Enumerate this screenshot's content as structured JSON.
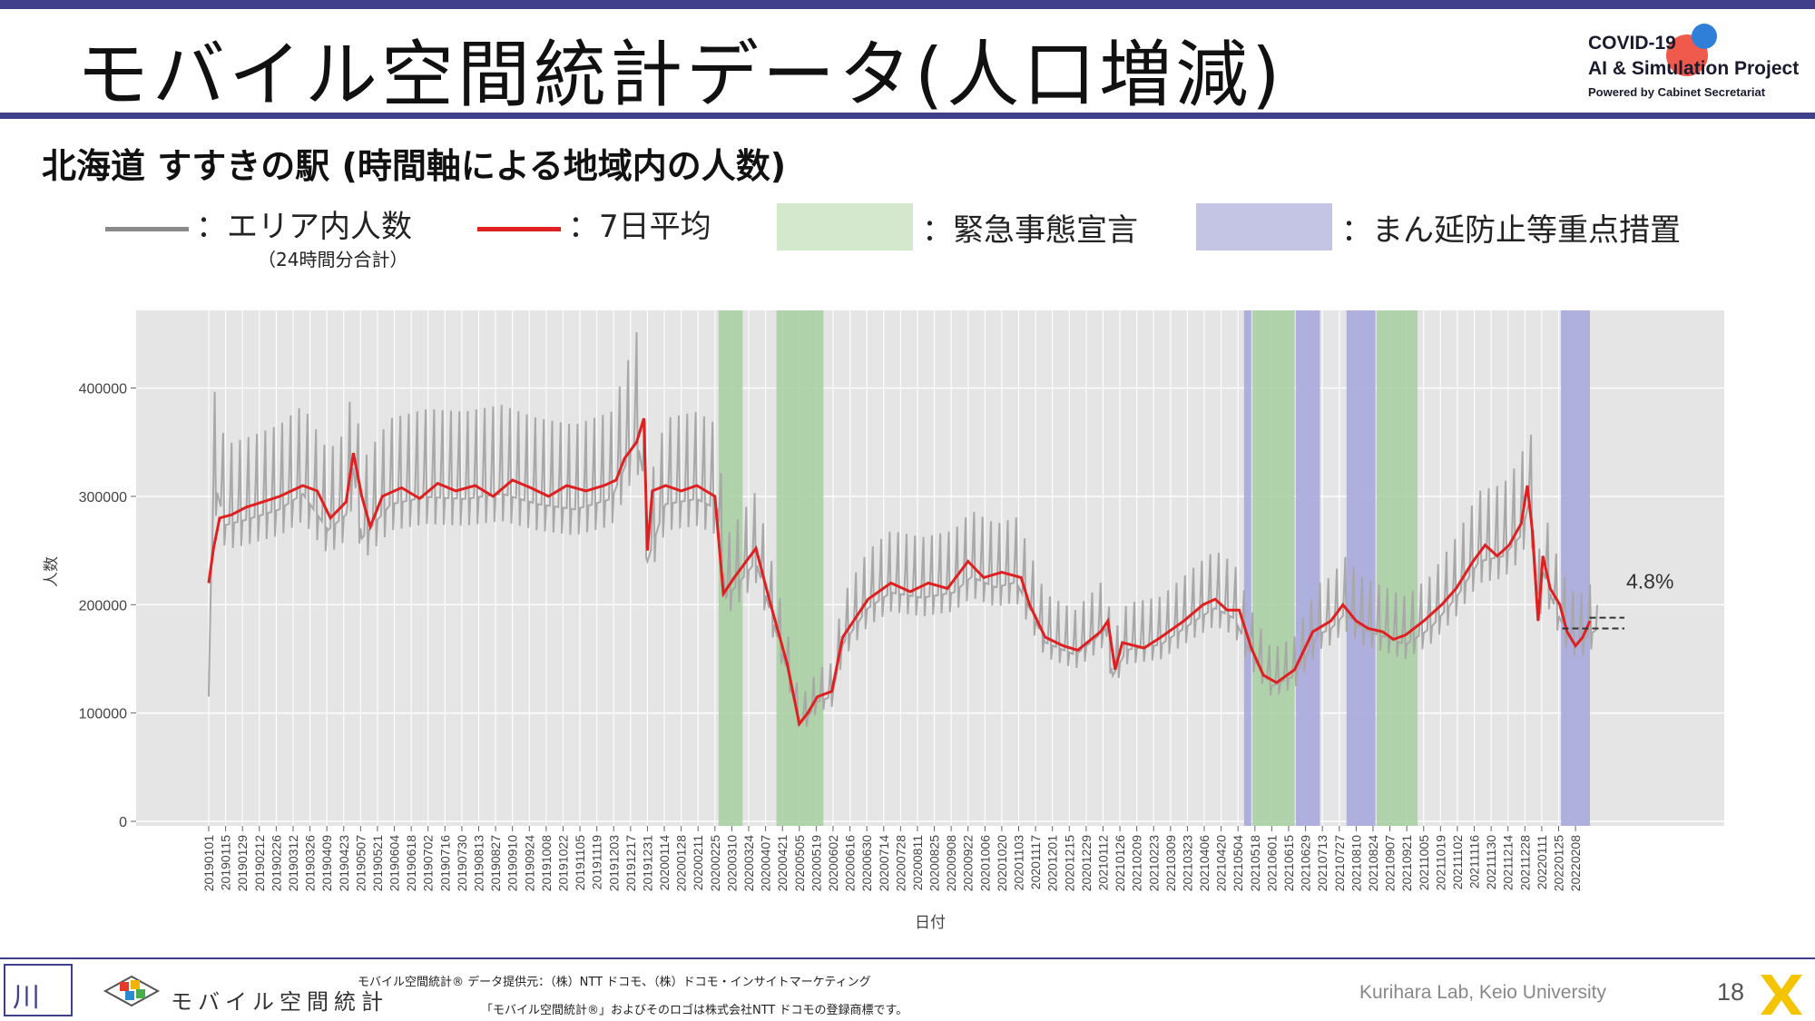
{
  "header": {
    "title": "モバイル空間統計データ(人口増減)",
    "logo": {
      "line1": "COVID-19",
      "line2": "AI & Simulation Project",
      "line3": "Powered by Cabinet Secretariat"
    }
  },
  "subtitle": "北海道 すすきの駅 (時間軸による地域内の人数)",
  "legend": {
    "area_count": "：エリア内人数",
    "area_count_note": "（24時間分合計）",
    "avg7": "：7日平均",
    "emergency": "：緊急事態宣言",
    "priority": "：まん延防止等重点措置"
  },
  "colors": {
    "raw_line": "#a8a8a8",
    "avg_line": "#e02020",
    "emergency_band": "#a6cfa0",
    "priority_band": "#a7a8dc",
    "panel": "#e5e5e5",
    "header_rule": "#3f3f8c"
  },
  "chart_data": {
    "type": "line",
    "xlabel": "日付",
    "ylabel": "人数",
    "ylim": [
      0,
      470000
    ],
    "y_ticks": [
      "0",
      "100000",
      "200000",
      "300000",
      "400000"
    ],
    "y_tick_values": [
      0,
      100000,
      200000,
      300000,
      400000
    ],
    "x_start": "2019-01-01",
    "x_end": "2022-02-26",
    "x_tick_labels": [
      "20190101",
      "20190115",
      "20190129",
      "20190212",
      "20190226",
      "20190312",
      "20190326",
      "20190409",
      "20190423",
      "20190507",
      "20190521",
      "20190604",
      "20190618",
      "20190702",
      "20190716",
      "20190730",
      "20190813",
      "20190827",
      "20190910",
      "20190924",
      "20191008",
      "20191022",
      "20191105",
      "20191119",
      "20191203",
      "20191217",
      "20191231",
      "20200114",
      "20200128",
      "20200211",
      "20200225",
      "20200310",
      "20200324",
      "20200407",
      "20200421",
      "20200505",
      "20200519",
      "20200602",
      "20200616",
      "20200630",
      "20200714",
      "20200728",
      "20200811",
      "20200825",
      "20200908",
      "20200922",
      "20201006",
      "20201020",
      "20201103",
      "20201117",
      "20201201",
      "20201215",
      "20201229",
      "20210112",
      "20210126",
      "20210209",
      "20210223",
      "20210309",
      "20210323",
      "20210406",
      "20210420",
      "20210504",
      "20210518",
      "20210601",
      "20210615",
      "20210629",
      "20210713",
      "20210727",
      "20210810",
      "20210824",
      "20210907",
      "20210921",
      "20211005",
      "20211019",
      "20211102",
      "20211116",
      "20211130",
      "20211214",
      "20211228",
      "20220111",
      "20220125",
      "20220208"
    ],
    "annotation": "4.8%",
    "emergency_periods": [
      [
        "2020-02-28",
        "2020-03-19"
      ],
      [
        "2020-04-16",
        "2020-05-25"
      ],
      [
        "2021-05-16",
        "2021-06-20"
      ],
      [
        "2021-08-27",
        "2021-09-30"
      ]
    ],
    "priority_periods": [
      [
        "2021-05-09",
        "2021-05-15"
      ],
      [
        "2021-06-21",
        "2021-07-11"
      ],
      [
        "2021-08-02",
        "2021-08-26"
      ],
      [
        "2022-01-27",
        "2022-02-20"
      ]
    ],
    "series": [
      {
        "name": "エリア内人数",
        "style": "raw",
        "points": [
          [
            "2019-01-01",
            120000
          ],
          [
            "2019-01-03",
            240000
          ],
          [
            "2019-01-06",
            325000
          ],
          [
            "2019-01-15",
            285000
          ],
          [
            "2019-02-01",
            290000
          ],
          [
            "2019-03-01",
            300000
          ],
          [
            "2019-03-20",
            315000
          ],
          [
            "2019-04-10",
            280000
          ],
          [
            "2019-04-25",
            295000
          ],
          [
            "2019-05-01",
            340000
          ],
          [
            "2019-05-08",
            272000
          ],
          [
            "2019-06-01",
            305000
          ],
          [
            "2019-07-01",
            312000
          ],
          [
            "2019-08-01",
            310000
          ],
          [
            "2019-09-01",
            315000
          ],
          [
            "2019-10-01",
            305000
          ],
          [
            "2019-11-01",
            300000
          ],
          [
            "2019-12-01",
            310000
          ],
          [
            "2019-12-12",
            340000
          ],
          [
            "2019-12-22",
            370000
          ],
          [
            "2019-12-28",
            330000
          ],
          [
            "2019-12-31",
            250000
          ],
          [
            "2020-01-15",
            305000
          ],
          [
            "2020-02-10",
            310000
          ],
          [
            "2020-02-27",
            300000
          ],
          [
            "2020-03-05",
            215000
          ],
          [
            "2020-03-20",
            235000
          ],
          [
            "2020-03-30",
            250000
          ],
          [
            "2020-04-10",
            205000
          ],
          [
            "2020-04-25",
            145000
          ],
          [
            "2020-05-05",
            95000
          ],
          [
            "2020-05-12",
            100000
          ],
          [
            "2020-05-20",
            115000
          ],
          [
            "2020-06-01",
            120000
          ],
          [
            "2020-06-10",
            170000
          ],
          [
            "2020-07-01",
            205000
          ],
          [
            "2020-07-20",
            220000
          ],
          [
            "2020-08-15",
            215000
          ],
          [
            "2020-09-10",
            220000
          ],
          [
            "2020-09-25",
            235000
          ],
          [
            "2020-10-15",
            225000
          ],
          [
            "2020-11-01",
            230000
          ],
          [
            "2020-11-12",
            205000
          ],
          [
            "2020-11-25",
            172000
          ],
          [
            "2020-12-20",
            160000
          ],
          [
            "2021-01-05",
            175000
          ],
          [
            "2021-01-14",
            185000
          ],
          [
            "2021-01-20",
            140000
          ],
          [
            "2021-02-01",
            165000
          ],
          [
            "2021-03-01",
            170000
          ],
          [
            "2021-04-01",
            195000
          ],
          [
            "2021-04-15",
            205000
          ],
          [
            "2021-05-01",
            195000
          ],
          [
            "2021-05-15",
            160000
          ],
          [
            "2021-06-01",
            130000
          ],
          [
            "2021-06-20",
            140000
          ],
          [
            "2021-07-10",
            180000
          ],
          [
            "2021-07-20",
            185000
          ],
          [
            "2021-08-01",
            200000
          ],
          [
            "2021-08-15",
            185000
          ],
          [
            "2021-09-01",
            178000
          ],
          [
            "2021-09-20",
            170000
          ],
          [
            "2021-10-10",
            185000
          ],
          [
            "2021-11-01",
            215000
          ],
          [
            "2021-11-20",
            250000
          ],
          [
            "2021-12-10",
            255000
          ],
          [
            "2021-12-25",
            275000
          ],
          [
            "2021-12-31",
            305000
          ],
          [
            "2022-01-04",
            280000
          ],
          [
            "2022-01-08",
            195000
          ],
          [
            "2022-01-12",
            240000
          ],
          [
            "2022-01-22",
            205000
          ],
          [
            "2022-02-01",
            180000
          ],
          [
            "2022-02-10",
            170000
          ],
          [
            "2022-02-26",
            185000
          ]
        ]
      },
      {
        "name": "7日平均",
        "style": "avg",
        "points": [
          [
            "2019-01-01",
            220000
          ],
          [
            "2019-01-05",
            252000
          ],
          [
            "2019-01-10",
            280000
          ],
          [
            "2019-01-20",
            283000
          ],
          [
            "2019-02-01",
            290000
          ],
          [
            "2019-02-15",
            295000
          ],
          [
            "2019-03-01",
            300000
          ],
          [
            "2019-03-20",
            310000
          ],
          [
            "2019-04-01",
            305000
          ],
          [
            "2019-04-12",
            280000
          ],
          [
            "2019-04-25",
            295000
          ],
          [
            "2019-05-01",
            340000
          ],
          [
            "2019-05-08",
            300000
          ],
          [
            "2019-05-15",
            272000
          ],
          [
            "2019-05-25",
            300000
          ],
          [
            "2019-06-10",
            308000
          ],
          [
            "2019-06-25",
            298000
          ],
          [
            "2019-07-10",
            312000
          ],
          [
            "2019-07-25",
            305000
          ],
          [
            "2019-08-10",
            310000
          ],
          [
            "2019-08-25",
            300000
          ],
          [
            "2019-09-10",
            315000
          ],
          [
            "2019-09-25",
            308000
          ],
          [
            "2019-10-10",
            300000
          ],
          [
            "2019-10-25",
            310000
          ],
          [
            "2019-11-10",
            305000
          ],
          [
            "2019-11-25",
            310000
          ],
          [
            "2019-12-05",
            315000
          ],
          [
            "2019-12-12",
            335000
          ],
          [
            "2019-12-22",
            350000
          ],
          [
            "2019-12-28",
            372000
          ],
          [
            "2019-12-31",
            250000
          ],
          [
            "2020-01-04",
            305000
          ],
          [
            "2020-01-15",
            310000
          ],
          [
            "2020-01-28",
            305000
          ],
          [
            "2020-02-10",
            310000
          ],
          [
            "2020-02-25",
            300000
          ],
          [
            "2020-03-03",
            210000
          ],
          [
            "2020-03-12",
            225000
          ],
          [
            "2020-03-22",
            240000
          ],
          [
            "2020-03-30",
            252000
          ],
          [
            "2020-04-10",
            205000
          ],
          [
            "2020-04-25",
            145000
          ],
          [
            "2020-05-05",
            90000
          ],
          [
            "2020-05-12",
            100000
          ],
          [
            "2020-05-20",
            115000
          ],
          [
            "2020-06-01",
            120000
          ],
          [
            "2020-06-10",
            170000
          ],
          [
            "2020-07-01",
            205000
          ],
          [
            "2020-07-20",
            220000
          ],
          [
            "2020-08-05",
            212000
          ],
          [
            "2020-08-20",
            220000
          ],
          [
            "2020-09-05",
            215000
          ],
          [
            "2020-09-22",
            240000
          ],
          [
            "2020-10-05",
            225000
          ],
          [
            "2020-10-20",
            230000
          ],
          [
            "2020-11-05",
            225000
          ],
          [
            "2020-11-12",
            200000
          ],
          [
            "2020-11-25",
            170000
          ],
          [
            "2020-12-10",
            162000
          ],
          [
            "2020-12-22",
            158000
          ],
          [
            "2021-01-10",
            175000
          ],
          [
            "2021-01-16",
            185000
          ],
          [
            "2021-01-22",
            140000
          ],
          [
            "2021-01-28",
            165000
          ],
          [
            "2021-02-15",
            160000
          ],
          [
            "2021-03-01",
            170000
          ],
          [
            "2021-03-20",
            185000
          ],
          [
            "2021-04-05",
            200000
          ],
          [
            "2021-04-15",
            205000
          ],
          [
            "2021-04-25",
            195000
          ],
          [
            "2021-05-05",
            195000
          ],
          [
            "2021-05-15",
            160000
          ],
          [
            "2021-05-25",
            135000
          ],
          [
            "2021-06-05",
            128000
          ],
          [
            "2021-06-20",
            140000
          ],
          [
            "2021-07-05",
            175000
          ],
          [
            "2021-07-20",
            185000
          ],
          [
            "2021-07-30",
            200000
          ],
          [
            "2021-08-10",
            185000
          ],
          [
            "2021-08-20",
            178000
          ],
          [
            "2021-09-01",
            175000
          ],
          [
            "2021-09-10",
            168000
          ],
          [
            "2021-09-20",
            172000
          ],
          [
            "2021-10-05",
            185000
          ],
          [
            "2021-10-20",
            200000
          ],
          [
            "2021-11-01",
            215000
          ],
          [
            "2021-11-15",
            240000
          ],
          [
            "2021-11-25",
            255000
          ],
          [
            "2021-12-05",
            245000
          ],
          [
            "2021-12-15",
            255000
          ],
          [
            "2021-12-25",
            275000
          ],
          [
            "2021-12-30",
            310000
          ],
          [
            "2022-01-03",
            270000
          ],
          [
            "2022-01-08",
            185000
          ],
          [
            "2022-01-12",
            245000
          ],
          [
            "2022-01-18",
            215000
          ],
          [
            "2022-01-26",
            200000
          ],
          [
            "2022-02-01",
            175000
          ],
          [
            "2022-02-08",
            162000
          ],
          [
            "2022-02-14",
            170000
          ],
          [
            "2022-02-20",
            185000
          ]
        ]
      }
    ]
  },
  "footer": {
    "brand": "モバイル空間統計",
    "credit_line1": "モバイル空間統計®   データ提供元：（株）NTT ドコモ、（株）ドコモ・インサイトマーケティング",
    "credit_line2": "「モバイル空間統計®」およびそのロゴは株式会社NTT ドコモの登録商標です。",
    "lab": "Kurihara Lab, Keio University",
    "page": "18"
  }
}
